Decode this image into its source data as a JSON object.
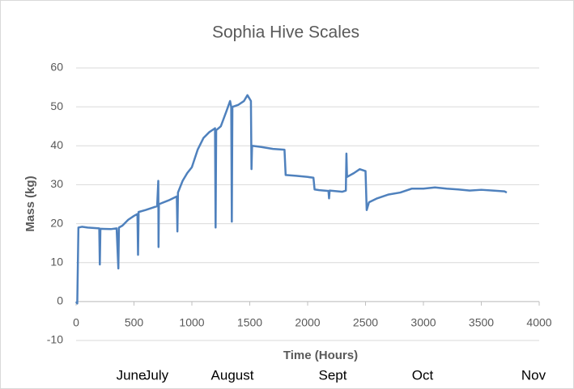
{
  "chart_data": {
    "type": "line",
    "title": "Sophia Hive Scales",
    "x_label": "Time (Hours)",
    "y_label": "Mass (kg)",
    "annotations": [
      "June",
      "July",
      "August",
      "Sept",
      "Oct",
      "Nov"
    ],
    "x": [
      0,
      10,
      20,
      50,
      100,
      200,
      205,
      210,
      300,
      350,
      365,
      370,
      400,
      450,
      500,
      530,
      535,
      540,
      600,
      650,
      700,
      710,
      712,
      715,
      800,
      870,
      875,
      880,
      920,
      960,
      1000,
      1050,
      1100,
      1150,
      1200,
      1205,
      1210,
      1250,
      1300,
      1330,
      1340,
      1345,
      1350,
      1400,
      1450,
      1480,
      1510,
      1515,
      1520,
      1600,
      1700,
      1800,
      1810,
      1900,
      2000,
      2050,
      2060,
      2100,
      2180,
      2185,
      2190,
      2300,
      2330,
      2335,
      2340,
      2400,
      2450,
      2500,
      2510,
      2530,
      2600,
      2700,
      2800,
      2900,
      3000,
      3100,
      3200,
      3300,
      3400,
      3500,
      3600,
      3700,
      3720
    ],
    "series": [
      {
        "color": "#4f81bd",
        "values": [
          0,
          -0.5,
          19,
          19.2,
          19,
          18.8,
          9.5,
          18.7,
          18.6,
          18.8,
          8.5,
          19,
          19.5,
          21,
          22,
          22.5,
          12,
          23,
          23.5,
          24,
          24.5,
          31,
          14,
          25,
          26,
          27,
          18,
          28,
          31,
          33,
          34.5,
          39,
          42,
          43.5,
          44.5,
          19,
          44,
          45,
          49,
          51.5,
          50,
          20.5,
          50,
          50.5,
          51.5,
          53,
          51.5,
          34,
          40,
          39.7,
          39.2,
          39,
          32.5,
          32.3,
          32,
          31.8,
          28.8,
          28.6,
          28.4,
          26.5,
          28.5,
          28.2,
          28.5,
          38,
          32,
          33,
          34,
          33.5,
          23.5,
          25.5,
          26.5,
          27.5,
          28,
          29,
          29,
          29.3,
          29,
          28.8,
          28.5,
          28.7,
          28.5,
          28.3,
          28
        ]
      }
    ],
    "xlim": [
      0,
      4000
    ],
    "xticks": [
      0,
      500,
      1000,
      1500,
      2000,
      2500,
      3000,
      3500,
      4000
    ],
    "ylim": [
      -10,
      60
    ],
    "yticks": [
      -10,
      0,
      10,
      20,
      30,
      40,
      50,
      60
    ],
    "grid": true
  }
}
